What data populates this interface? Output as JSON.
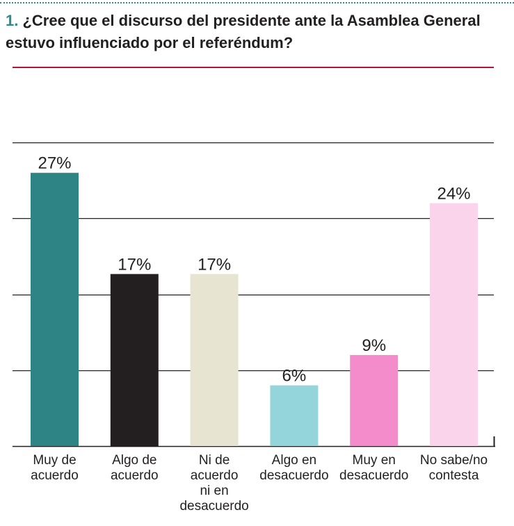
{
  "question": {
    "number": "1.",
    "text": "¿Cree que el discurso del presidente ante la Asamblea General estuvo influenciado por el referéndum?"
  },
  "colors": {
    "accent": "#2e8b8b",
    "rule": "#b5133c",
    "bars": [
      "#2e8384",
      "#231f20",
      "#e7e5d2",
      "#93d5da",
      "#f48ccc",
      "#f9d4ea"
    ]
  },
  "chart_data": {
    "type": "bar",
    "title": "¿Cree que el discurso del presidente ante la Asamblea General estuvo influenciado por el referéndum?",
    "categories": [
      [
        "Muy de",
        "acuerdo"
      ],
      [
        "Algo de",
        "acuerdo"
      ],
      [
        "Ni de",
        "acuerdo",
        "ni en",
        "desacuerdo"
      ],
      [
        "Algo en",
        "desacuerdo"
      ],
      [
        "Muy en",
        "desacuerdo"
      ],
      [
        "No sabe/no",
        "contesta"
      ]
    ],
    "values": [
      27,
      17,
      17,
      6,
      9,
      24
    ],
    "value_labels": [
      "27%",
      "17%",
      "17%",
      "6%",
      "9%",
      "24%"
    ],
    "unit": "%",
    "ylim": [
      0,
      30
    ],
    "gridlines": [
      0,
      7.5,
      15,
      22.5,
      30
    ],
    "xlabel": "",
    "ylabel": ""
  }
}
